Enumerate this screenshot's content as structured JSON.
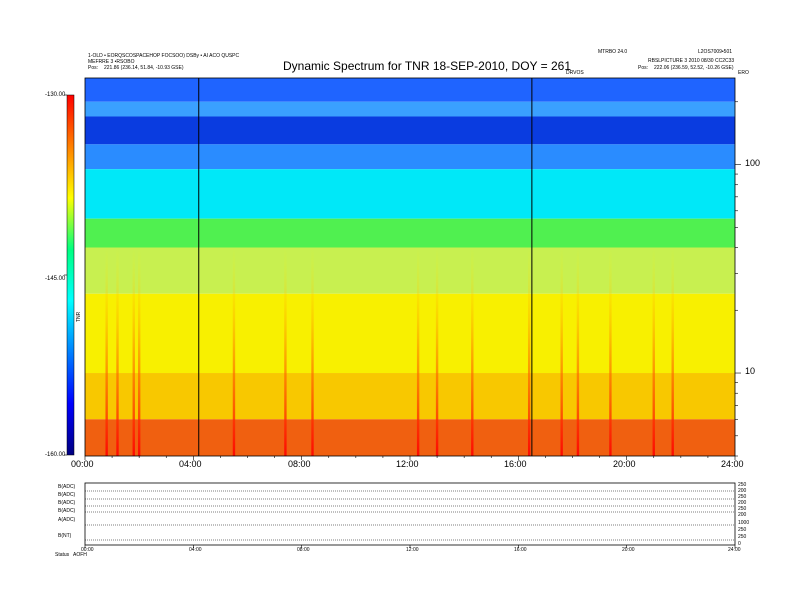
{
  "header": {
    "left_line1": "1-OLD • EORQSCOSPACEHOP FOCSOO) DSBy • AI ACO QUSPC",
    "left_line2": "MEFRRE 3 •RSOBO",
    "left_pos_label": "Pos:",
    "left_pos_value": "221.86 (236.14, 51.84, -10.93 GSE)",
    "right_line1": "MTRBO 24.0",
    "right_line1b": "L2OS7009•501",
    "right_line2": "RBSLPICTURE 3 2010 08/30 CC2C33",
    "right_pos_label": "Pos:",
    "right_pos_value": "222.06 (236.59, 52.52, -10.26 GSE)",
    "center_small": "DRVOS",
    "right_corner": "ERO"
  },
  "chart_data": {
    "type": "heatmap",
    "title": "Dynamic Spectrum for TNR 18-SEP-2010, DOY = 261",
    "x_ticks": [
      "00:00",
      "04:00",
      "08:00",
      "12:00",
      "16:00",
      "20:00",
      "24:00"
    ],
    "x_range_hours": [
      0,
      24
    ],
    "y_scale": "log",
    "y_ticks": [
      "100",
      "10"
    ],
    "y_tick_values": [
      100,
      10
    ],
    "y_range": [
      4,
      260
    ],
    "colorbar": {
      "ticks": [
        "-130.00",
        "-145.00",
        "-160.00"
      ],
      "tick_values": [
        -130,
        -145,
        -160
      ],
      "range": [
        -160,
        -130
      ],
      "label": "TNR",
      "colors": [
        "#000080",
        "#0000ff",
        "#0080ff",
        "#00ffff",
        "#00ff80",
        "#ffff00",
        "#ff8000",
        "#ff0000"
      ]
    },
    "vertical_markers_hours": [
      4.2,
      16.5
    ],
    "bands": [
      {
        "from_freq": 260,
        "to_freq": 200,
        "color": "#1f64ff"
      },
      {
        "from_freq": 200,
        "to_freq": 170,
        "color": "#3aa0ff"
      },
      {
        "from_freq": 170,
        "to_freq": 125,
        "color": "#0a3ce0"
      },
      {
        "from_freq": 125,
        "to_freq": 95,
        "color": "#2a8cff"
      },
      {
        "from_freq": 95,
        "to_freq": 55,
        "color": "#00e8f8"
      },
      {
        "from_freq": 55,
        "to_freq": 40,
        "color": "#50f050"
      },
      {
        "from_freq": 40,
        "to_freq": 24,
        "color": "#c8f050"
      },
      {
        "from_freq": 24,
        "to_freq": 10,
        "color": "#f8f000"
      },
      {
        "from_freq": 10,
        "to_freq": 6,
        "color": "#f8c800"
      },
      {
        "from_freq": 6,
        "to_freq": 4,
        "color": "#f06010"
      }
    ],
    "bursts_hours": [
      0.8,
      1.2,
      1.8,
      2.0,
      5.5,
      7.4,
      8.4,
      12.3,
      13.0,
      14.3,
      16.4,
      17.6,
      18.2,
      19.4,
      21.0,
      21.7
    ]
  },
  "lower_panel": {
    "row_labels": [
      "B(ADC)",
      "B(ADC)",
      "B(ADC)",
      "B(ADC)",
      "A(ADC)",
      "B(NT)"
    ],
    "right_labels": [
      "250",
      "200",
      "250",
      "200",
      "250",
      "200",
      "1000",
      "250",
      "250",
      "0"
    ],
    "footer_left": "Status",
    "footer_left2": "AOFH",
    "x_ticks": [
      "00:00",
      "04:00",
      "08:00",
      "12:00",
      "16:00",
      "20:00",
      "24:00"
    ]
  }
}
